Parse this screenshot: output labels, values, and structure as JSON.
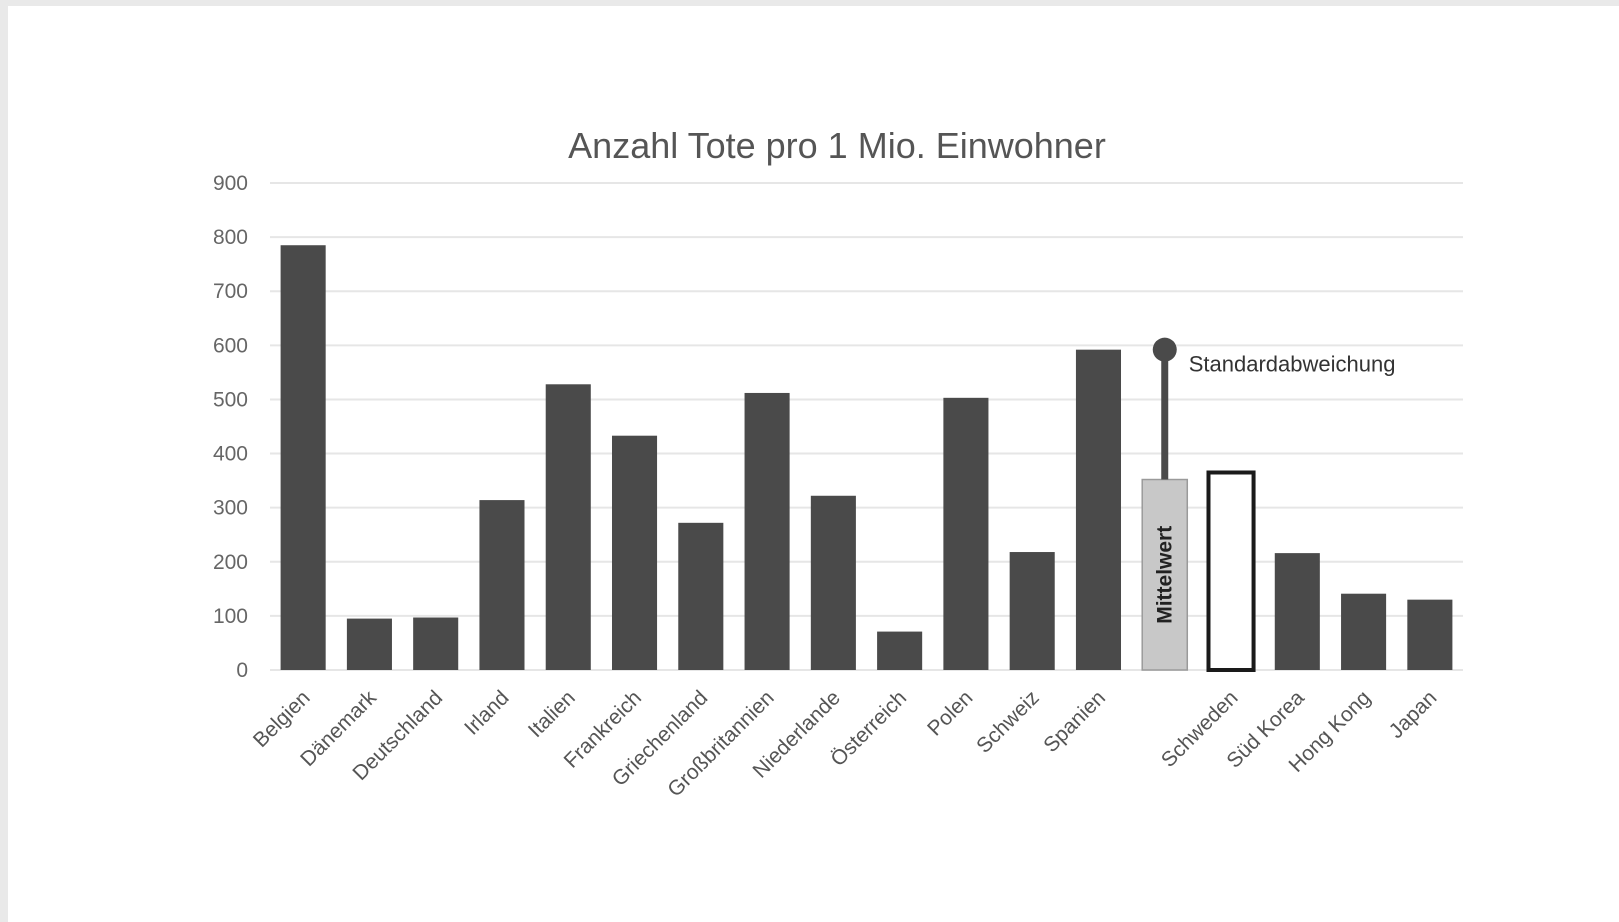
{
  "chart_data": {
    "type": "bar",
    "title": "Anzahl Tote pro 1 Mio. Einwohner",
    "xlabel": "",
    "ylabel": "",
    "ylim": [
      0,
      900
    ],
    "yticks": [
      0,
      100,
      200,
      300,
      400,
      500,
      600,
      700,
      800,
      900
    ],
    "grid": true,
    "categories": [
      "Belgien",
      "Dänemark",
      "Deutschland",
      "Irland",
      "Italien",
      "Frankreich",
      "Griechenland",
      "Großbritannien",
      "Niederlande",
      "Österreich",
      "Polen",
      "Schweiz",
      "Spanien",
      "",
      "Schweden",
      "Süd Korea",
      "Hong Kong",
      "Japan"
    ],
    "values": [
      785,
      95,
      97,
      314,
      528,
      433,
      272,
      512,
      322,
      71,
      503,
      218,
      592,
      352,
      365,
      216,
      141,
      130
    ],
    "bar_styles": [
      "dark",
      "dark",
      "dark",
      "dark",
      "dark",
      "dark",
      "dark",
      "dark",
      "dark",
      "dark",
      "dark",
      "dark",
      "dark",
      "mean",
      "outline",
      "dark",
      "dark",
      "dark"
    ],
    "mean_bar_label": "Mittelwert",
    "error_bar": {
      "category_index": 13,
      "low": 352,
      "high": 592,
      "label": "Standardabweichung"
    },
    "colors": {
      "dark": "#4a4a4a",
      "mean": "#c8c8c8",
      "outline_fill": "#ffffff",
      "outline_stroke": "#1a1a1a",
      "grid": "#e6e6e6"
    }
  }
}
